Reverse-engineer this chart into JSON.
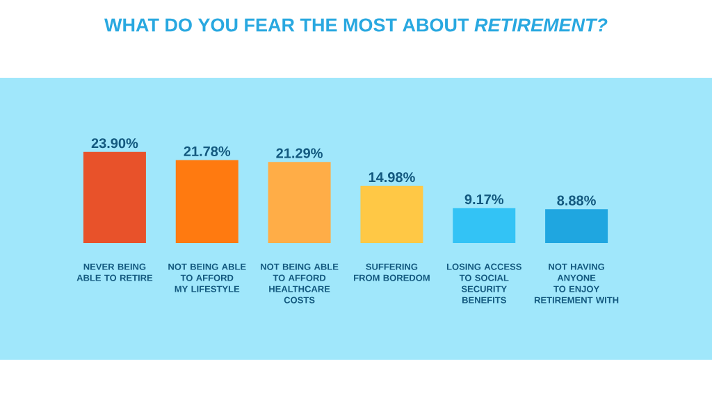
{
  "chart_data": {
    "type": "bar",
    "title": "WHAT DO YOU FEAR THE MOST ABOUT *RETIREMENT?*",
    "categories": [
      "NEVER BEING ABLE TO RETIRE",
      "NOT BEING ABLE TO AFFORD MY LIFESTYLE",
      "NOT BEING ABLE TO AFFORD HEALTHCARE COSTS",
      "SUFFERING FROM BOREDOM",
      "LOSING ACCESS TO SOCIAL SECURITY BENEFITS",
      "NOT HAVING ANYONE TO ENJOY RETIREMENT WITH"
    ],
    "values": [
      23.9,
      21.78,
      21.29,
      14.98,
      9.17,
      8.88
    ],
    "value_labels": [
      "23.90%",
      "21.78%",
      "21.29%",
      "14.98%",
      "9.17%",
      "8.88%"
    ],
    "colors": [
      "#e8522a",
      "#ff7a10",
      "#ffad47",
      "#ffc845",
      "#33c3f5",
      "#1fa6e0"
    ]
  }
}
